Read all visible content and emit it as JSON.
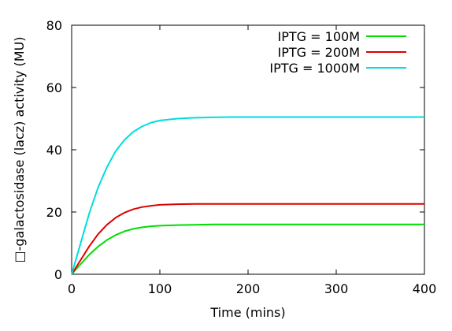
{
  "chart_data": {
    "type": "line",
    "title": "",
    "xlabel": "Time (mins)",
    "ylabel": "□-galactosidase (lacz) activity (MU)",
    "xlim": [
      0,
      400
    ],
    "ylim": [
      0,
      80
    ],
    "xticks": [
      0,
      100,
      200,
      300,
      400
    ],
    "yticks": [
      0,
      20,
      40,
      60,
      80
    ],
    "grid": false,
    "legend_position": "top-right",
    "x": [
      0,
      10,
      20,
      30,
      40,
      50,
      60,
      70,
      80,
      90,
      100,
      120,
      140,
      160,
      180,
      200,
      250,
      300,
      350,
      400
    ],
    "series": [
      {
        "name": "IPTG = 100M",
        "color": "#00dd00",
        "values": [
          0,
          3.2,
          6.3,
          8.9,
          11.0,
          12.6,
          13.8,
          14.6,
          15.1,
          15.4,
          15.6,
          15.8,
          15.9,
          16.0,
          16.0,
          16.0,
          16.0,
          16.0,
          16.0,
          16.0
        ]
      },
      {
        "name": "IPTG = 200M",
        "color": "#dd0000",
        "values": [
          0,
          4.5,
          9.0,
          12.9,
          15.9,
          18.2,
          19.8,
          20.9,
          21.6,
          22.0,
          22.3,
          22.5,
          22.6,
          22.6,
          22.6,
          22.6,
          22.6,
          22.6,
          22.6,
          22.6
        ]
      },
      {
        "name": "IPTG = 1000M",
        "color": "#00dddd",
        "values": [
          0,
          9.8,
          19.6,
          27.9,
          34.4,
          39.6,
          43.2,
          45.8,
          47.5,
          48.7,
          49.4,
          50.0,
          50.3,
          50.4,
          50.5,
          50.5,
          50.5,
          50.5,
          50.5,
          50.5
        ]
      }
    ]
  }
}
